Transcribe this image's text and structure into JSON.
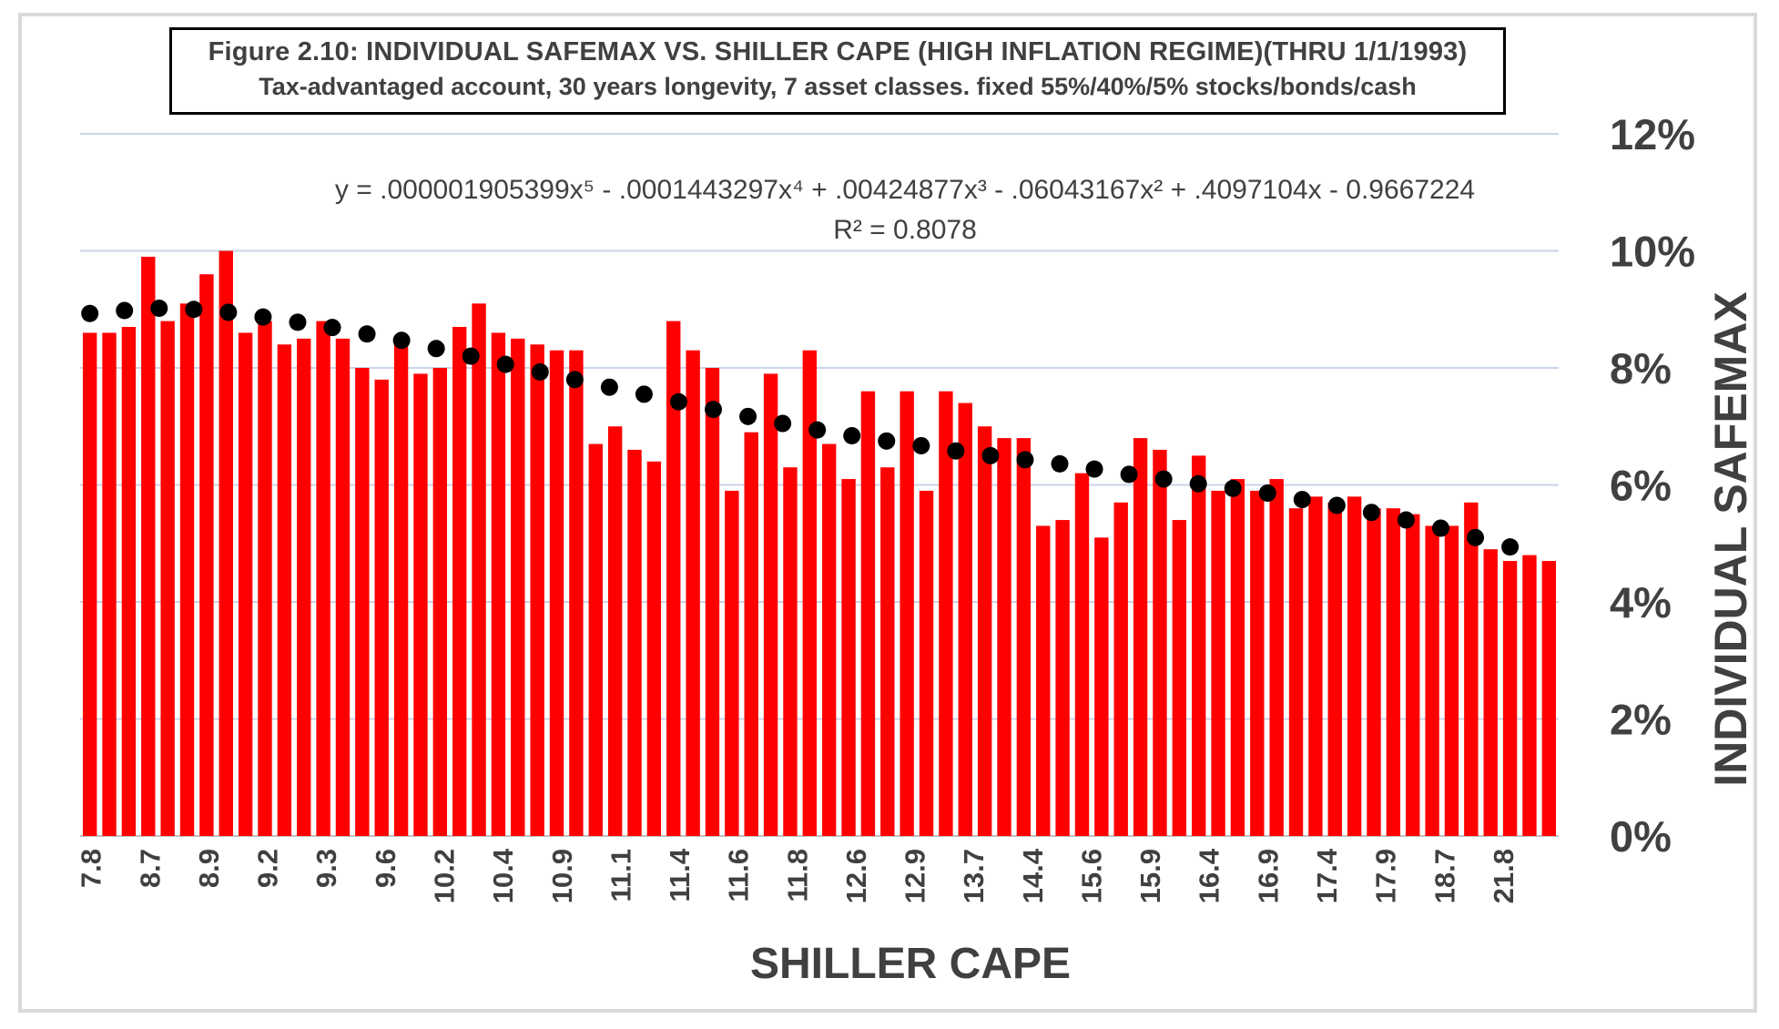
{
  "chart_data": {
    "type": "bar",
    "title": "Figure 2.10: INDIVIDUAL SAFEMAX VS. SHILLER CAPE (HIGH INFLATION REGIME)(THRU 1/1/1993)",
    "subtitle": "Tax-advantaged account, 30 years longevity, 7 asset classes. fixed 55%/40%/5% stocks/bonds/cash",
    "xlabel": "SHILLER CAPE",
    "ylabel": "INDIVIDUAL SAFEMAX",
    "ylim": [
      0,
      0.12
    ],
    "y_ticks": [
      "0%",
      "2%",
      "4%",
      "6%",
      "8%",
      "10%",
      "12%"
    ],
    "y_axis_position": "right",
    "grid": true,
    "legend": "none",
    "x_tick_labels": [
      "7.8",
      "8.7",
      "8.9",
      "9.2",
      "9.3",
      "9.6",
      "10.2",
      "10.4",
      "10.9",
      "11.1",
      "11.4",
      "11.6",
      "11.8",
      "12.6",
      "12.9",
      "13.7",
      "14.4",
      "15.6",
      "15.9",
      "16.4",
      "16.9",
      "17.4",
      "17.9",
      "18.7",
      "21.8"
    ],
    "bar_color": "#ff0000",
    "trend_color": "#000000",
    "series": [
      {
        "type": "bar",
        "values": [
          0.086,
          0.086,
          0.087,
          0.099,
          0.088,
          0.091,
          0.096,
          0.1,
          0.086,
          0.088,
          0.084,
          0.085,
          0.088,
          0.085,
          0.08,
          0.078,
          0.085,
          0.079,
          0.08,
          0.087,
          0.091,
          0.086,
          0.085,
          0.084,
          0.083,
          0.083,
          0.067,
          0.07,
          0.066,
          0.064,
          0.088,
          0.083,
          0.08,
          0.059,
          0.069,
          0.079,
          0.063,
          0.083,
          0.067,
          0.061,
          0.076,
          0.063,
          0.076,
          0.059,
          0.076,
          0.074,
          0.07,
          0.068,
          0.068,
          0.053,
          0.054,
          0.062,
          0.051,
          0.057,
          0.068,
          0.066,
          0.054,
          0.065,
          0.059,
          0.061,
          0.059,
          0.061,
          0.056,
          0.058,
          0.057,
          0.058,
          0.056,
          0.056,
          0.055,
          0.053,
          0.053,
          0.057,
          0.049,
          0.047,
          0.048,
          0.047
        ]
      },
      {
        "type": "trendline",
        "equation": "y = .000001905399x⁵ - .0001443297x⁴ + .00424877x³ - .06043167x² + .4097104x - 0.9667224",
        "r_squared": "R² = 0.8078",
        "values": [
          0.0893,
          0.0898,
          0.0902,
          0.09,
          0.0895,
          0.0887,
          0.0878,
          0.0869,
          0.0858,
          0.0847,
          0.0833,
          0.082,
          0.0806,
          0.0793,
          0.078,
          0.0767,
          0.0755,
          0.0742,
          0.0729,
          0.0717,
          0.0705,
          0.0694,
          0.0684,
          0.0675,
          0.0667,
          0.0658,
          0.065,
          0.0643,
          0.0636,
          0.0627,
          0.0618,
          0.061,
          0.0602,
          0.0594,
          0.0586,
          0.0575,
          0.0565,
          0.0553,
          0.054,
          0.0526,
          0.051,
          0.0494
        ]
      }
    ]
  }
}
